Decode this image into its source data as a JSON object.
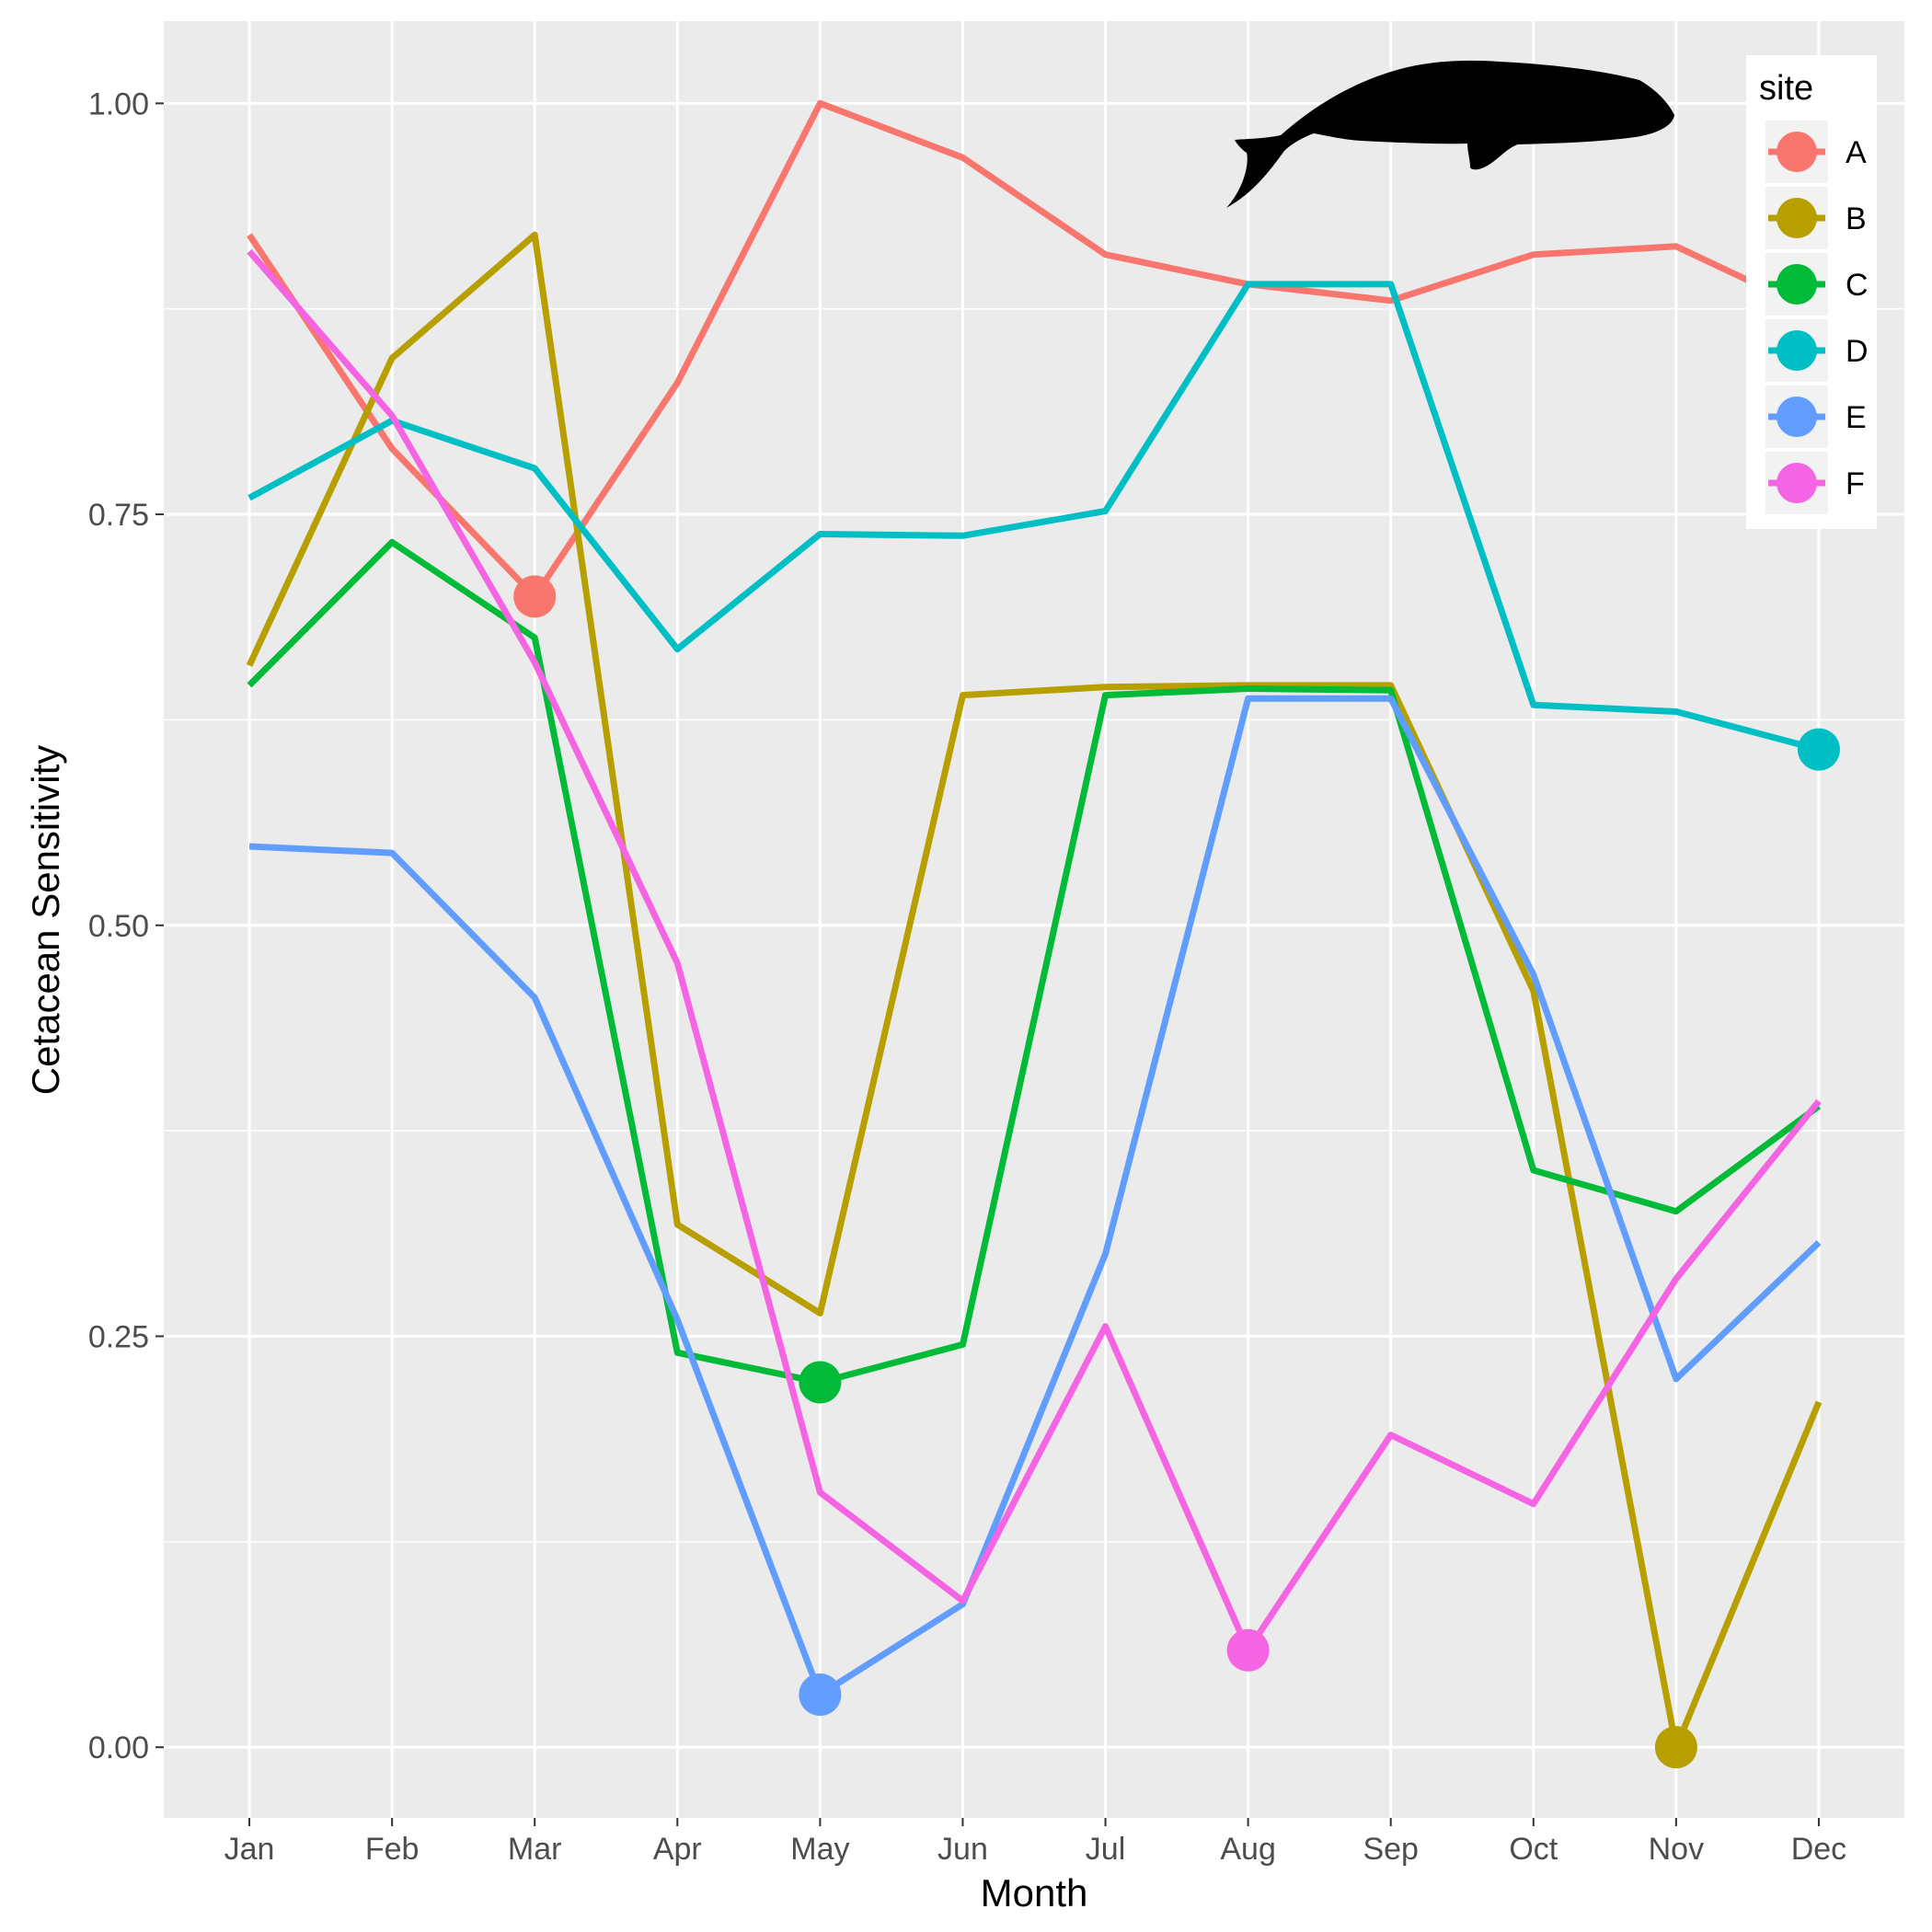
{
  "chart_data": {
    "type": "line",
    "title": "",
    "xlabel": "Month",
    "ylabel": "Cetacean Sensitivity",
    "categories": [
      "Jan",
      "Feb",
      "Mar",
      "Apr",
      "May",
      "Jun",
      "Jul",
      "Aug",
      "Sep",
      "Oct",
      "Nov",
      "Dec"
    ],
    "y_ticks": [
      "0.00",
      "0.25",
      "0.50",
      "0.75",
      "1.00"
    ],
    "ylim": [
      -0.043,
      1.05
    ],
    "grid": true,
    "legend_title": "site",
    "legend_position": "top-right",
    "series": [
      {
        "name": "A",
        "color": "#F8766D",
        "values": [
          0.92,
          0.79,
          0.7,
          0.83,
          1.0,
          0.967,
          0.908,
          0.89,
          0.88,
          0.908,
          0.913,
          0.872
        ],
        "highlight_index": 2
      },
      {
        "name": "B",
        "color": "#B79F00",
        "values": [
          0.658,
          0.845,
          0.92,
          0.318,
          0.264,
          0.64,
          0.645,
          0.646,
          0.646,
          0.46,
          0.0,
          0.21
        ],
        "highlight_index": 10
      },
      {
        "name": "C",
        "color": "#00BA38",
        "values": [
          0.646,
          0.733,
          0.675,
          0.24,
          0.222,
          0.245,
          0.64,
          0.644,
          0.643,
          0.351,
          0.326,
          0.39
        ],
        "highlight_index": 4
      },
      {
        "name": "D",
        "color": "#00BFC4",
        "values": [
          0.76,
          0.807,
          0.778,
          0.668,
          0.738,
          0.737,
          0.752,
          0.89,
          0.89,
          0.634,
          0.63,
          0.607
        ],
        "highlight_index": 11
      },
      {
        "name": "E",
        "color": "#619CFF",
        "values": [
          0.548,
          0.544,
          0.456,
          0.26,
          0.032,
          0.087,
          0.3,
          0.638,
          0.638,
          0.47,
          0.224,
          0.307
        ],
        "highlight_index": 4
      },
      {
        "name": "F",
        "color": "#F564E3",
        "values": [
          0.91,
          0.81,
          0.66,
          0.477,
          0.155,
          0.089,
          0.256,
          0.059,
          0.19,
          0.148,
          0.285,
          0.393
        ],
        "highlight_index": 7
      }
    ],
    "annotation_icon": "whale-silhouette-icon"
  }
}
